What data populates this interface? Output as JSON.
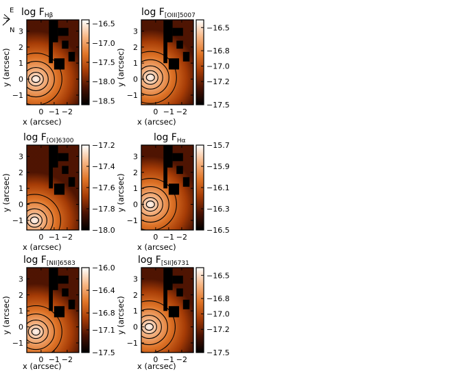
{
  "orientation": {
    "east_label": "E",
    "north_label": "N"
  },
  "chart_data": [
    {
      "type": "heatmap",
      "title": "log F",
      "title_sub": "Hβ",
      "xlabel": "x (arcsec)",
      "ylabel": "y (arcsec)",
      "xlim": [
        1.1,
        -2.9
      ],
      "ylim": [
        -1.6,
        3.7
      ],
      "xticks": [
        "0",
        "−1",
        "−2"
      ],
      "yticks": [
        "3",
        "2",
        "1",
        "0",
        "−1"
      ],
      "colorbar_ticks": [
        "−16.5",
        "−17.0",
        "−17.5",
        "−18.0",
        "−18.5"
      ],
      "colorbar_range": [
        -18.6,
        -16.4
      ],
      "peak": {
        "x": 0.4,
        "y": 0.0
      },
      "colormap": [
        "#000000",
        "#4a1202",
        "#a63c06",
        "#e07528",
        "#f7b685",
        "#ffffff"
      ]
    },
    {
      "type": "heatmap",
      "title": "log F",
      "title_sub": "[OIII]5007",
      "xlabel": "x (arcsec)",
      "ylabel": "y (arcsec)",
      "xlim": [
        1.1,
        -2.9
      ],
      "ylim": [
        -1.6,
        3.7
      ],
      "xticks": [
        "0",
        "−1",
        "−2"
      ],
      "yticks": [
        "3",
        "2",
        "1",
        "0",
        "−1"
      ],
      "colorbar_ticks": [
        "−16.5",
        "−16.8",
        "−17.0",
        "−17.2",
        "−17.5"
      ],
      "colorbar_range": [
        -17.5,
        -16.4
      ],
      "peak": {
        "x": 0.4,
        "y": 0.1
      },
      "colormap": [
        "#000000",
        "#4a1202",
        "#a63c06",
        "#e07528",
        "#f7b685",
        "#ffffff"
      ]
    },
    {
      "type": "heatmap",
      "title": "log F",
      "title_sub": "[OI]6300",
      "xlabel": "x (arcsec)",
      "ylabel": "y (arcsec)",
      "xlim": [
        1.1,
        -2.9
      ],
      "ylim": [
        -1.6,
        3.7
      ],
      "xticks": [
        "0",
        "−1",
        "−2"
      ],
      "yticks": [
        "3",
        "2",
        "1",
        "0",
        "−1"
      ],
      "colorbar_ticks": [
        "−17.2",
        "−17.4",
        "−17.6",
        "−17.8",
        "−18.0"
      ],
      "colorbar_range": [
        -18.0,
        -17.2
      ],
      "peak": {
        "x": 0.5,
        "y": -1.0
      },
      "colormap": [
        "#000000",
        "#4a1202",
        "#a63c06",
        "#e07528",
        "#f7b685",
        "#ffffff"
      ]
    },
    {
      "type": "heatmap",
      "title": "log F",
      "title_sub": "Hα",
      "xlabel": "x (arcsec)",
      "ylabel": "y (arcsec)",
      "xlim": [
        1.1,
        -2.9
      ],
      "ylim": [
        -1.6,
        3.7
      ],
      "xticks": [
        "0",
        "−1",
        "−2"
      ],
      "yticks": [
        "3",
        "2",
        "1",
        "0",
        "−1"
      ],
      "colorbar_ticks": [
        "−15.7",
        "−15.9",
        "−16.1",
        "−16.3",
        "−16.5"
      ],
      "colorbar_range": [
        -16.5,
        -15.7
      ],
      "peak": {
        "x": 0.4,
        "y": 0.0
      },
      "colormap": [
        "#000000",
        "#4a1202",
        "#a63c06",
        "#e07528",
        "#f7b685",
        "#ffffff"
      ]
    },
    {
      "type": "heatmap",
      "title": "log F",
      "title_sub": "[NII]6583",
      "xlabel": "x (arcsec)",
      "ylabel": "y (arcsec)",
      "xlim": [
        1.1,
        -2.9
      ],
      "ylim": [
        -1.6,
        3.7
      ],
      "xticks": [
        "0",
        "−1",
        "−2"
      ],
      "yticks": [
        "3",
        "2",
        "1",
        "0",
        "−1"
      ],
      "colorbar_ticks": [
        "−16.0",
        "−16.4",
        "−16.8",
        "−17.1",
        "−17.5"
      ],
      "colorbar_range": [
        -17.5,
        -16.0
      ],
      "peak": {
        "x": 0.4,
        "y": -0.3
      },
      "colormap": [
        "#000000",
        "#4a1202",
        "#a63c06",
        "#e07528",
        "#f7b685",
        "#ffffff"
      ]
    },
    {
      "type": "heatmap",
      "title": "log F",
      "title_sub": "[SII]6731",
      "xlabel": "x (arcsec)",
      "ylabel": "y (arcsec)",
      "xlim": [
        1.1,
        -2.9
      ],
      "ylim": [
        -1.6,
        3.7
      ],
      "xticks": [
        "0",
        "−1",
        "−2"
      ],
      "yticks": [
        "3",
        "2",
        "1",
        "0",
        "−1"
      ],
      "colorbar_ticks": [
        "−16.5",
        "−16.8",
        "−17.0",
        "−17.2",
        "−17.5"
      ],
      "colorbar_range": [
        -17.5,
        -16.4
      ],
      "peak": {
        "x": 0.5,
        "y": 0.0
      },
      "colormap": [
        "#000000",
        "#4a1202",
        "#a63c06",
        "#e07528",
        "#f7b685",
        "#ffffff"
      ]
    }
  ]
}
